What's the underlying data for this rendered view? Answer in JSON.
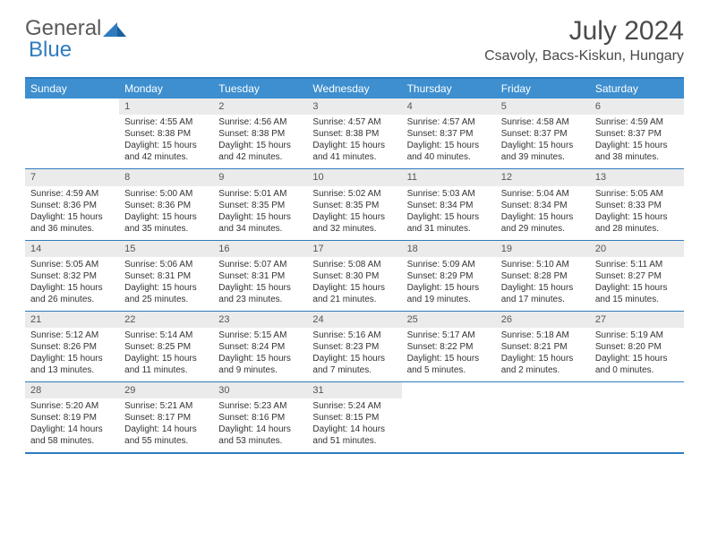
{
  "brand": {
    "part1": "General",
    "part2": "Blue"
  },
  "title": {
    "monthyear": "July 2024",
    "location": "Csavoly, Bacs-Kiskun, Hungary"
  },
  "colors": {
    "accent": "#3d8fcf",
    "rule": "#2f7bbf",
    "shade": "#ebebeb",
    "text": "#333333"
  },
  "day_labels": [
    "Sunday",
    "Monday",
    "Tuesday",
    "Wednesday",
    "Thursday",
    "Friday",
    "Saturday"
  ],
  "weeks": [
    [
      {
        "empty": true
      },
      {
        "n": "1",
        "sr": "Sunrise: 4:55 AM",
        "ss": "Sunset: 8:38 PM",
        "d1": "Daylight: 15 hours",
        "d2": "and 42 minutes."
      },
      {
        "n": "2",
        "sr": "Sunrise: 4:56 AM",
        "ss": "Sunset: 8:38 PM",
        "d1": "Daylight: 15 hours",
        "d2": "and 42 minutes."
      },
      {
        "n": "3",
        "sr": "Sunrise: 4:57 AM",
        "ss": "Sunset: 8:38 PM",
        "d1": "Daylight: 15 hours",
        "d2": "and 41 minutes."
      },
      {
        "n": "4",
        "sr": "Sunrise: 4:57 AM",
        "ss": "Sunset: 8:37 PM",
        "d1": "Daylight: 15 hours",
        "d2": "and 40 minutes."
      },
      {
        "n": "5",
        "sr": "Sunrise: 4:58 AM",
        "ss": "Sunset: 8:37 PM",
        "d1": "Daylight: 15 hours",
        "d2": "and 39 minutes."
      },
      {
        "n": "6",
        "sr": "Sunrise: 4:59 AM",
        "ss": "Sunset: 8:37 PM",
        "d1": "Daylight: 15 hours",
        "d2": "and 38 minutes."
      }
    ],
    [
      {
        "n": "7",
        "sr": "Sunrise: 4:59 AM",
        "ss": "Sunset: 8:36 PM",
        "d1": "Daylight: 15 hours",
        "d2": "and 36 minutes."
      },
      {
        "n": "8",
        "sr": "Sunrise: 5:00 AM",
        "ss": "Sunset: 8:36 PM",
        "d1": "Daylight: 15 hours",
        "d2": "and 35 minutes."
      },
      {
        "n": "9",
        "sr": "Sunrise: 5:01 AM",
        "ss": "Sunset: 8:35 PM",
        "d1": "Daylight: 15 hours",
        "d2": "and 34 minutes."
      },
      {
        "n": "10",
        "sr": "Sunrise: 5:02 AM",
        "ss": "Sunset: 8:35 PM",
        "d1": "Daylight: 15 hours",
        "d2": "and 32 minutes."
      },
      {
        "n": "11",
        "sr": "Sunrise: 5:03 AM",
        "ss": "Sunset: 8:34 PM",
        "d1": "Daylight: 15 hours",
        "d2": "and 31 minutes."
      },
      {
        "n": "12",
        "sr": "Sunrise: 5:04 AM",
        "ss": "Sunset: 8:34 PM",
        "d1": "Daylight: 15 hours",
        "d2": "and 29 minutes."
      },
      {
        "n": "13",
        "sr": "Sunrise: 5:05 AM",
        "ss": "Sunset: 8:33 PM",
        "d1": "Daylight: 15 hours",
        "d2": "and 28 minutes."
      }
    ],
    [
      {
        "n": "14",
        "sr": "Sunrise: 5:05 AM",
        "ss": "Sunset: 8:32 PM",
        "d1": "Daylight: 15 hours",
        "d2": "and 26 minutes."
      },
      {
        "n": "15",
        "sr": "Sunrise: 5:06 AM",
        "ss": "Sunset: 8:31 PM",
        "d1": "Daylight: 15 hours",
        "d2": "and 25 minutes."
      },
      {
        "n": "16",
        "sr": "Sunrise: 5:07 AM",
        "ss": "Sunset: 8:31 PM",
        "d1": "Daylight: 15 hours",
        "d2": "and 23 minutes."
      },
      {
        "n": "17",
        "sr": "Sunrise: 5:08 AM",
        "ss": "Sunset: 8:30 PM",
        "d1": "Daylight: 15 hours",
        "d2": "and 21 minutes."
      },
      {
        "n": "18",
        "sr": "Sunrise: 5:09 AM",
        "ss": "Sunset: 8:29 PM",
        "d1": "Daylight: 15 hours",
        "d2": "and 19 minutes."
      },
      {
        "n": "19",
        "sr": "Sunrise: 5:10 AM",
        "ss": "Sunset: 8:28 PM",
        "d1": "Daylight: 15 hours",
        "d2": "and 17 minutes."
      },
      {
        "n": "20",
        "sr": "Sunrise: 5:11 AM",
        "ss": "Sunset: 8:27 PM",
        "d1": "Daylight: 15 hours",
        "d2": "and 15 minutes."
      }
    ],
    [
      {
        "n": "21",
        "sr": "Sunrise: 5:12 AM",
        "ss": "Sunset: 8:26 PM",
        "d1": "Daylight: 15 hours",
        "d2": "and 13 minutes."
      },
      {
        "n": "22",
        "sr": "Sunrise: 5:14 AM",
        "ss": "Sunset: 8:25 PM",
        "d1": "Daylight: 15 hours",
        "d2": "and 11 minutes."
      },
      {
        "n": "23",
        "sr": "Sunrise: 5:15 AM",
        "ss": "Sunset: 8:24 PM",
        "d1": "Daylight: 15 hours",
        "d2": "and 9 minutes."
      },
      {
        "n": "24",
        "sr": "Sunrise: 5:16 AM",
        "ss": "Sunset: 8:23 PM",
        "d1": "Daylight: 15 hours",
        "d2": "and 7 minutes."
      },
      {
        "n": "25",
        "sr": "Sunrise: 5:17 AM",
        "ss": "Sunset: 8:22 PM",
        "d1": "Daylight: 15 hours",
        "d2": "and 5 minutes."
      },
      {
        "n": "26",
        "sr": "Sunrise: 5:18 AM",
        "ss": "Sunset: 8:21 PM",
        "d1": "Daylight: 15 hours",
        "d2": "and 2 minutes."
      },
      {
        "n": "27",
        "sr": "Sunrise: 5:19 AM",
        "ss": "Sunset: 8:20 PM",
        "d1": "Daylight: 15 hours",
        "d2": "and 0 minutes."
      }
    ],
    [
      {
        "n": "28",
        "sr": "Sunrise: 5:20 AM",
        "ss": "Sunset: 8:19 PM",
        "d1": "Daylight: 14 hours",
        "d2": "and 58 minutes."
      },
      {
        "n": "29",
        "sr": "Sunrise: 5:21 AM",
        "ss": "Sunset: 8:17 PM",
        "d1": "Daylight: 14 hours",
        "d2": "and 55 minutes."
      },
      {
        "n": "30",
        "sr": "Sunrise: 5:23 AM",
        "ss": "Sunset: 8:16 PM",
        "d1": "Daylight: 14 hours",
        "d2": "and 53 minutes."
      },
      {
        "n": "31",
        "sr": "Sunrise: 5:24 AM",
        "ss": "Sunset: 8:15 PM",
        "d1": "Daylight: 14 hours",
        "d2": "and 51 minutes."
      },
      {
        "empty": true
      },
      {
        "empty": true
      },
      {
        "empty": true
      }
    ]
  ]
}
